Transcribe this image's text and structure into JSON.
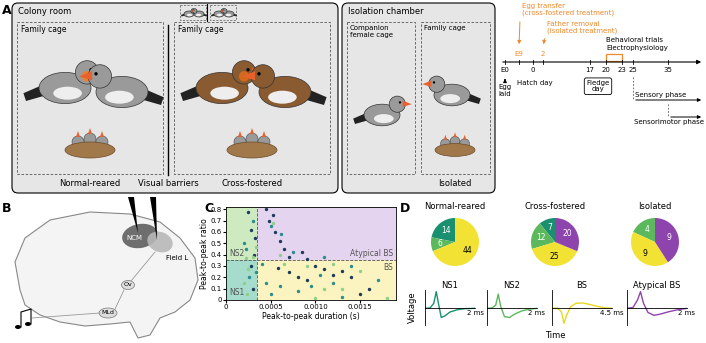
{
  "panel_labels": [
    "A",
    "B",
    "C",
    "D"
  ],
  "A": {
    "colony_room": {
      "title": "Colony room",
      "cages": [
        "Family cage",
        "Family cage"
      ],
      "groups": [
        "Normal-reared",
        "Cross-fostered"
      ],
      "barrier": "Visual barriers"
    },
    "isolation_chamber": {
      "title": "Isolation chamber",
      "cages": [
        "Companion\nfemale cage",
        "Family cage"
      ],
      "groups": [
        "Isolated"
      ]
    },
    "timeline": {
      "ticks": [
        "E0",
        "E9",
        "0",
        "2",
        "17",
        "20",
        "23",
        "25",
        "35"
      ],
      "events": [
        {
          "text": "Egg\nlaid",
          "at": "E0"
        },
        {
          "text": "Egg transfer\n(cross-fostered treatment)",
          "at": "E9",
          "color": "#f0892b"
        },
        {
          "text": "Hatch day",
          "at": "0"
        },
        {
          "text": "Father removal\n(isolated treatment)",
          "at": "2",
          "color": "#f0892b"
        },
        {
          "text": "Fledge\nday",
          "at": "17"
        }
      ],
      "trials": {
        "texts": [
          "Behavioral trials",
          "Electrophysiology"
        ],
        "from": "20",
        "to": "23",
        "color": "#f0892b"
      },
      "phases": [
        {
          "text": "Sensory phase",
          "from": "25"
        },
        {
          "text": "Sensorimotor phase",
          "from": "35"
        }
      ]
    }
  },
  "B": {
    "labels": [
      "NCM",
      "Field L",
      "Ov",
      "MLd"
    ]
  },
  "D": {
    "xlabel": "Time",
    "ylabel": "Voltage"
  },
  "chart_data": [
    {
      "type": "scatter",
      "xlabel": "Peak-to-peak duration (s)",
      "ylabel": "Peak-to-peak ratio",
      "xlim": [
        0,
        0.0019
      ],
      "ylim": [
        0,
        0.82
      ],
      "xticks": [
        0,
        0.0005,
        {
          "value": 0.001,
          "label": "0.0010"
        },
        0.0015
      ],
      "yticks": [
        0,
        0.1,
        0.2,
        0.3,
        0.4,
        0.5,
        0.6,
        0.7,
        0.8
      ],
      "thresholds": {
        "x": 0.00035,
        "y": 0.35
      },
      "regions": [
        {
          "name": "NS1",
          "color": "#a6dccb"
        },
        {
          "name": "NS2",
          "color": "#cdeac0"
        },
        {
          "name": "BS",
          "color": "#fbf4c0"
        },
        {
          "name": "Atypical BS",
          "color": "#e5d4f0"
        }
      ],
      "series": [
        {
          "color": "#1f3b5a",
          "x": [
            0.00025,
            0.00028,
            0.00032,
            0.00045,
            0.00048,
            0.00052,
            0.00055,
            0.0006,
            0.00065,
            0.0007,
            0.00085,
            0.0009,
            0.00058,
            0.0007,
            0.0008,
            0.0009,
            0.001,
            0.0011,
            0.0012,
            0.0013,
            0.0014,
            0.0015,
            0.0016,
            0.00028,
            0.0003,
            0.00031
          ],
          "y": [
            0.78,
            0.62,
            0.55,
            0.8,
            0.7,
            0.75,
            0.6,
            0.52,
            0.45,
            0.38,
            0.42,
            0.36,
            0.28,
            0.25,
            0.2,
            0.18,
            0.3,
            0.27,
            0.22,
            0.26,
            0.2,
            0.05,
            0.1,
            0.3,
            0.1,
            0.4
          ]
        },
        {
          "color": "#2a8c8c",
          "x": [
            0.0002,
            0.00022,
            0.0003,
            0.0005,
            0.00062,
            0.00075,
            0.0011,
            0.0004,
            0.00045,
            0.0006,
            0.0008,
            0.00095,
            0.00105,
            0.0012,
            0.0014,
            0.00026,
            0.00033,
            0.0005,
            0.0013,
            0.0017
          ],
          "y": [
            0.5,
            0.45,
            0.7,
            0.65,
            0.58,
            0.42,
            0.38,
            0.32,
            0.15,
            0.12,
            0.08,
            0.12,
            0.22,
            0.15,
            0.3,
            0.2,
            0.25,
            0.05,
            0.03,
            0.18
          ]
        },
        {
          "color": "#8fcf8a",
          "x": [
            0.0002,
            0.00023,
            0.00025,
            0.0003,
            0.00052,
            0.0006,
            0.00065,
            0.0009,
            0.001,
            0.0011,
            0.0012,
            0.0013,
            0.0015,
            0.0018,
            0.00034,
            0.00022
          ],
          "y": [
            0.15,
            0.05,
            0.27,
            0.38,
            0.68,
            0.4,
            0.32,
            0.3,
            0.02,
            0.1,
            0.32,
            0.1,
            0.26,
            0.02,
            0.47,
            0.37
          ]
        }
      ]
    },
    {
      "type": "pie",
      "title": "Normal-reared",
      "values": [
        14,
        6,
        44
      ],
      "colors": [
        "#1a9070",
        "#5cb85c",
        "#f2e233"
      ],
      "data_labels": true
    },
    {
      "type": "pie",
      "title": "Cross-fostered",
      "values": [
        7,
        12,
        25,
        20
      ],
      "colors": [
        "#1a9070",
        "#5cb85c",
        "#f2e233",
        "#8e44ad"
      ],
      "data_labels": true
    },
    {
      "type": "pie",
      "title": "Isolated",
      "values": [
        4,
        9,
        9
      ],
      "colors": [
        "#5cb85c",
        "#f2e233",
        "#8e44ad"
      ],
      "data_labels": true
    },
    {
      "type": "line",
      "title": "NS1",
      "color": "#1a9070",
      "x": [
        0,
        0.2,
        0.35,
        0.45,
        0.55,
        0.65,
        0.8,
        1.0,
        1.3,
        1.6,
        2.0
      ],
      "values": [
        0,
        0.02,
        0.3,
        1.0,
        0.2,
        -0.55,
        -0.45,
        -0.22,
        -0.08,
        -0.02,
        0
      ],
      "xlim": [
        0,
        2
      ],
      "ylim": [
        -1,
        1.1
      ],
      "xticks": [
        {
          "value": 2,
          "label": "2 ms"
        }
      ]
    },
    {
      "type": "line",
      "title": "NS2",
      "color": "#5cb85c",
      "x": [
        0,
        0.2,
        0.35,
        0.45,
        0.55,
        0.7,
        0.9,
        1.1,
        1.4,
        1.7,
        2.0
      ],
      "values": [
        0,
        0.02,
        0.2,
        0.85,
        0.1,
        -0.5,
        -0.55,
        -0.35,
        -0.15,
        -0.05,
        0
      ],
      "xlim": [
        0,
        2
      ],
      "ylim": [
        -1,
        1.1
      ],
      "xticks": [
        {
          "value": 2,
          "label": "2 ms"
        }
      ]
    },
    {
      "type": "line",
      "title": "BS",
      "color": "#e8d820",
      "x": [
        0,
        0.4,
        0.7,
        0.9,
        1.1,
        1.4,
        1.8,
        2.3,
        2.9,
        3.5,
        4.0,
        4.5
      ],
      "values": [
        0,
        0.02,
        -0.2,
        -0.9,
        -0.4,
        0.1,
        0.3,
        0.32,
        0.22,
        0.1,
        0.03,
        0
      ],
      "xlim": [
        0,
        4.5
      ],
      "ylim": [
        -1,
        1.1
      ],
      "xticks": [
        {
          "value": 4.5,
          "label": "4.5 ms"
        }
      ]
    },
    {
      "type": "line",
      "title": "Atypical BS",
      "color": "#8e44ad",
      "x": [
        0,
        0.2,
        0.35,
        0.45,
        0.55,
        0.7,
        0.9,
        1.1,
        1.4,
        1.7,
        2.0
      ],
      "values": [
        0,
        0.05,
        0.5,
        1.0,
        0.3,
        -0.25,
        -0.42,
        -0.35,
        -0.2,
        -0.08,
        0
      ],
      "xlim": [
        0,
        2
      ],
      "ylim": [
        -1,
        1.1
      ],
      "xticks": [
        {
          "value": 2,
          "label": "2 ms"
        }
      ]
    }
  ]
}
